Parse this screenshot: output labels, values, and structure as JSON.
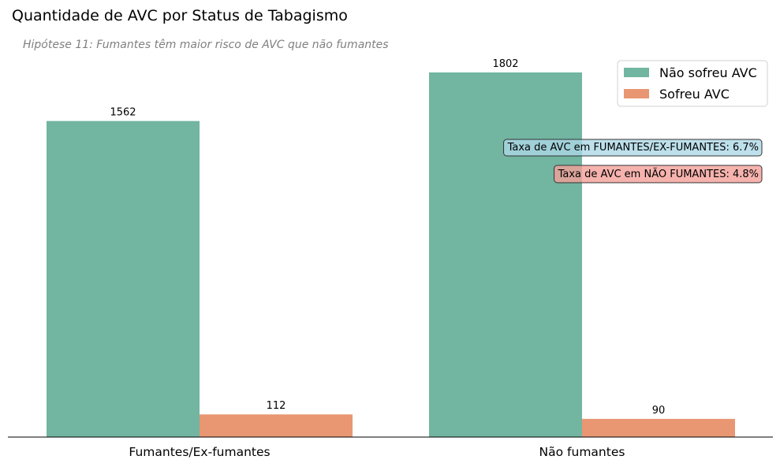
{
  "chart_data": {
    "type": "bar",
    "title": "Quantidade de AVC por Status de Tabagismo",
    "subtitle": "Hipótese 11: Fumantes têm maior risco de AVC que não fumantes",
    "categories": [
      "Fumantes/Ex-fumantes",
      "Não fumantes"
    ],
    "series": [
      {
        "name": "Não sofreu AVC",
        "values": [
          1562,
          1802
        ],
        "color": "#72b5a0"
      },
      {
        "name": "Sofreu AVC",
        "values": [
          112,
          90
        ],
        "color": "#e99673"
      }
    ],
    "ylim": [
      0,
      1892
    ],
    "grid": false,
    "legend_position": "top-right",
    "annotations": [
      {
        "text": "Taxa de AVC em FUMANTES/EX-FUMANTES: 6.7%",
        "bg_color": "#add8e6"
      },
      {
        "text": "Taxa de AVC em NÃO FUMANTES: 4.8%",
        "bg_color": "#f4a09a"
      }
    ]
  }
}
